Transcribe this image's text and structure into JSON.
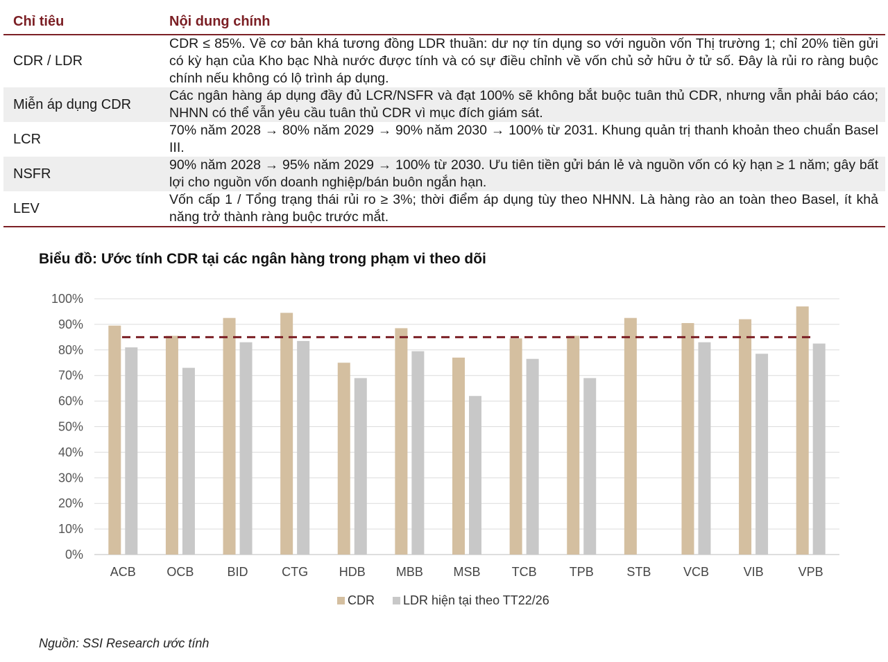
{
  "table": {
    "header": {
      "col1": "Chỉ tiêu",
      "col2": "Nội dung chính"
    },
    "rows": [
      {
        "name": "CDR / LDR",
        "content": "CDR ≤ 85%. Về cơ bản khá tương đồng LDR thuần: dư nợ tín dụng so với nguồn vốn Thị trường 1; chỉ 20% tiền gửi có kỳ hạn của Kho bạc Nhà nước được tính và có sự điều chỉnh về vốn chủ sở hữu ở tử số. Đây là rủi ro ràng buộc chính nếu không có lộ trình áp dụng."
      },
      {
        "name": "Miễn áp dụng CDR",
        "content": "Các ngân hàng áp dụng đầy đủ LCR/NSFR và đạt 100% sẽ không bắt buộc tuân thủ CDR, nhưng vẫn phải báo cáo; NHNN có thể vẫn yêu cầu tuân thủ CDR vì mục đích giám sát."
      },
      {
        "name": "LCR",
        "content": "70% năm 2028 → 80% năm 2029 → 90% năm 2030 → 100% từ 2031. Khung quản trị thanh khoản theo chuẩn Basel III."
      },
      {
        "name": "NSFR",
        "content": "90% năm 2028 → 95% năm 2029 → 100% từ 2030. Ưu tiên tiền gửi bán lẻ và nguồn vốn có kỳ hạn ≥ 1 năm; gây bất lợi cho nguồn vốn doanh nghiệp/bán buôn ngắn hạn."
      },
      {
        "name": "LEV",
        "content": "Vốn cấp 1 / Tổng trạng thái rủi ro ≥ 3%; thời điểm áp dụng tùy theo NHNN. Là hàng rào an toàn theo Basel, ít khả năng trở thành ràng buộc trước mắt."
      }
    ]
  },
  "chart_title": "Biểu đồ: Ước tính CDR tại các ngân hàng trong phạm vi theo dõi",
  "source": "Nguồn: SSI Research ước tính",
  "chart_data": {
    "type": "bar",
    "title": "Biểu đồ: Ước tính CDR tại các ngân hàng trong phạm vi theo dõi",
    "categories": [
      "ACB",
      "OCB",
      "BID",
      "CTG",
      "HDB",
      "MBB",
      "MSB",
      "TCB",
      "TPB",
      "STB",
      "VCB",
      "VIB",
      "VPB"
    ],
    "series": [
      {
        "name": "CDR",
        "color": "#d4bfa0",
        "values": [
          89.5,
          85.5,
          92.5,
          94.5,
          75.0,
          88.5,
          77.0,
          84.5,
          85.5,
          92.5,
          90.5,
          92.0,
          97.0
        ]
      },
      {
        "name": "LDR hiện tại theo TT22/26",
        "color": "#c8c8c8",
        "values": [
          81.0,
          73.0,
          83.0,
          83.5,
          69.0,
          79.5,
          62.0,
          76.5,
          69.0,
          null,
          83.0,
          78.5,
          82.5
        ]
      }
    ],
    "threshold": {
      "value": 85,
      "color": "#7b1f24",
      "style": "dashed"
    },
    "ylim": [
      0,
      100
    ],
    "yticks": [
      "0%",
      "10%",
      "20%",
      "30%",
      "40%",
      "50%",
      "60%",
      "70%",
      "80%",
      "90%",
      "100%"
    ],
    "grid": true,
    "legend": "bottom-center",
    "xlabel": "",
    "ylabel": ""
  }
}
